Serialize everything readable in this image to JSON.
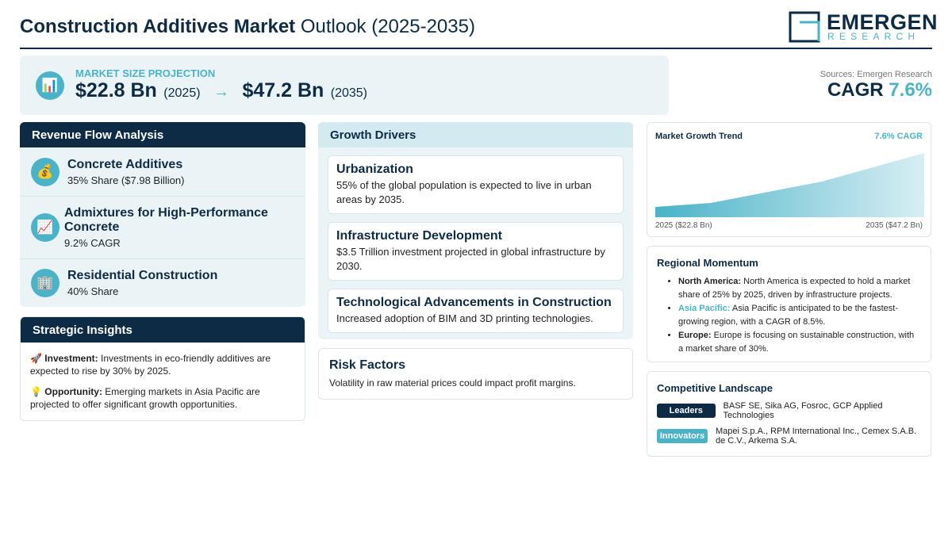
{
  "header": {
    "title_bold": "Construction Additives Market",
    "title_rest": "Outlook (2025-2035)",
    "logo_name": "EMERGEN",
    "logo_sub": "RESEARCH"
  },
  "projection": {
    "icon": "📊",
    "label": "MARKET SIZE PROJECTION",
    "start_value": "$22.8 Bn",
    "start_year": "(2025)",
    "arrow": "→",
    "end_value": "$47.2 Bn",
    "end_year": "(2035)"
  },
  "sources": "Sources: Emergen Research",
  "cagr": {
    "label": "CAGR",
    "value": "7.6%"
  },
  "revenue_flow": {
    "title": "Revenue Flow Analysis",
    "items": [
      {
        "icon": "💰",
        "name": "Concrete Additives",
        "detail": "35% Share ($7.98 Billion)"
      },
      {
        "icon": "📈",
        "name": "Admixtures for High-Performance Concrete",
        "detail": "9.2% CAGR"
      },
      {
        "icon": "🏢",
        "name": "Residential Construction",
        "detail": "40% Share"
      }
    ]
  },
  "strategic_insights": {
    "title": "Strategic Insights",
    "items": [
      {
        "icon": "🚀",
        "label": "Investment:",
        "text": "Investments in eco-friendly additives are expected to rise by 30% by 2025."
      },
      {
        "icon": "💡",
        "label": "Opportunity:",
        "text": "Emerging markets in Asia Pacific are projected to offer significant growth opportunities."
      }
    ]
  },
  "growth_drivers": {
    "title": "Growth Drivers",
    "items": [
      {
        "title": "Urbanization",
        "text": "55% of the global population is expected to live in urban areas by 2035."
      },
      {
        "title": "Infrastructure Development",
        "text": "$3.5 Trillion investment projected in global infrastructure by 2030."
      },
      {
        "title": "Technological Advancements in Construction",
        "text": "Increased adoption of BIM and 3D printing technologies."
      }
    ]
  },
  "risk_factors": {
    "title": "Risk Factors",
    "text": "Volatility in raw material prices could impact profit margins."
  },
  "trend": {
    "title": "Market Growth Trend",
    "badge": "7.6% CAGR",
    "start_label": "2025 ($22.8 Bn)",
    "end_label": "2035 ($47.2 Bn)"
  },
  "regional": {
    "title": "Regional Momentum",
    "items": [
      {
        "region": "North America:",
        "text": "North America is expected to hold a market share of 25% by 2025, driven by infrastructure projects."
      },
      {
        "region": "Asia Pacific:",
        "text": "Asia Pacific is anticipated to be the fastest-growing region, with a CAGR of 8.5%."
      },
      {
        "region": "Europe:",
        "text": "Europe is focusing on sustainable construction, with a market share of 30%."
      }
    ]
  },
  "competitive": {
    "title": "Competitive Landscape",
    "rows": [
      {
        "tag": "Leaders",
        "companies": "BASF SE, Sika AG, Fosroc, GCP Applied Technologies"
      },
      {
        "tag": "Innovators",
        "companies": "Mapei S.p.A., RPM International Inc., Cemex S.A.B. de C.V., Arkema S.A."
      }
    ]
  }
}
